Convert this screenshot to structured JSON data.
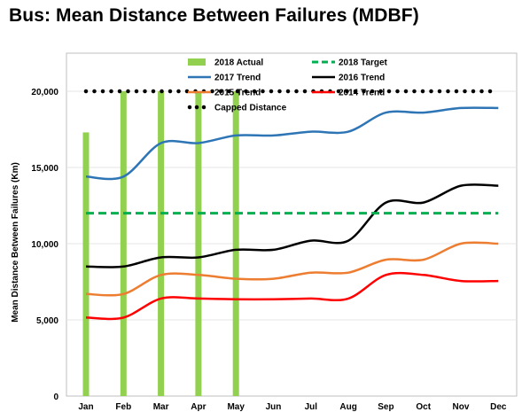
{
  "chart_data": {
    "type": "line",
    "title": "Bus: Mean Distance Between Failures (MDBF)",
    "ylabel": "Mean Distance Between Failures (Km)",
    "xlabel": "",
    "ylim": [
      0,
      22500
    ],
    "yticks": [
      0,
      5000,
      10000,
      15000,
      20000
    ],
    "ytick_labels": [
      "0",
      "5,000",
      "10,000",
      "15,000",
      "20,000"
    ],
    "categories": [
      "Jan",
      "Feb",
      "Mar",
      "Apr",
      "May",
      "Jun",
      "Jul",
      "Aug",
      "Sep",
      "Oct",
      "Nov",
      "Dec"
    ],
    "grid": "horizontal",
    "legend_position": "top",
    "bar_series": {
      "name": "2018 Actual",
      "color": "#92d050",
      "values": [
        17300,
        20000,
        20000,
        20000,
        20000
      ]
    },
    "series": [
      {
        "name": "2017 Trend",
        "color": "#2e75b6",
        "style": "solid",
        "values": [
          14400,
          14400,
          16600,
          16600,
          17100,
          17100,
          17350,
          17350,
          18600,
          18600,
          18900,
          18900
        ]
      },
      {
        "name": "2016 Trend",
        "color": "#000000",
        "style": "solid",
        "values": [
          8500,
          8500,
          9100,
          9100,
          9600,
          9600,
          10200,
          10200,
          12700,
          12700,
          13800,
          13800
        ]
      },
      {
        "name": "2015 Trend",
        "color": "#ed7d31",
        "style": "solid",
        "values": [
          6700,
          6700,
          7950,
          7950,
          7700,
          7700,
          8100,
          8100,
          8950,
          8950,
          10000,
          10000
        ]
      },
      {
        "name": "2014 Trend",
        "color": "#ff0000",
        "style": "solid",
        "values": [
          5150,
          5150,
          6400,
          6400,
          6350,
          6350,
          6400,
          6400,
          7950,
          7950,
          7550,
          7550
        ]
      },
      {
        "name": "2018 Target",
        "color": "#00b050",
        "style": "dashed",
        "values": [
          12000,
          12000,
          12000,
          12000,
          12000,
          12000,
          12000,
          12000,
          12000,
          12000,
          12000,
          12000
        ]
      },
      {
        "name": "Capped Distance",
        "color": "#000000",
        "style": "dotted",
        "values": [
          20000,
          20000,
          20000,
          20000,
          20000,
          20000,
          20000,
          20000,
          20000,
          20000,
          20000,
          20000
        ]
      }
    ],
    "legend": [
      {
        "name": "2018 Actual",
        "kind": "bar",
        "color": "#92d050"
      },
      {
        "name": "2018 Target",
        "kind": "dashed",
        "color": "#00b050"
      },
      {
        "name": "2017 Trend",
        "kind": "solid",
        "color": "#2e75b6"
      },
      {
        "name": "2016 Trend",
        "kind": "solid",
        "color": "#000000"
      },
      {
        "name": "2015 Trend",
        "kind": "solid",
        "color": "#ed7d31"
      },
      {
        "name": "2014 Trend",
        "kind": "solid",
        "color": "#ff0000"
      },
      {
        "name": "Capped Distance",
        "kind": "dotted",
        "color": "#000000"
      }
    ]
  }
}
